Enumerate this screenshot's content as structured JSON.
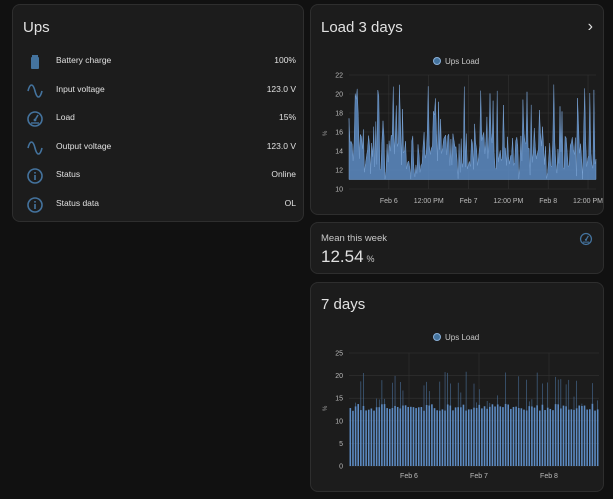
{
  "ups_card": {
    "title": "Ups",
    "entities": [
      {
        "name": "Battery charge",
        "value": "100%",
        "icon": "battery-icon"
      },
      {
        "name": "Input voltage",
        "value": "123.0 V",
        "icon": "sine-wave-icon"
      },
      {
        "name": "Load",
        "value": "15%",
        "icon": "gauge-icon"
      },
      {
        "name": "Output voltage",
        "value": "123.0 V",
        "icon": "sine-wave-icon"
      },
      {
        "name": "Status",
        "value": "Online",
        "icon": "info-icon"
      },
      {
        "name": "Status data",
        "value": "OL",
        "icon": "info-icon"
      }
    ]
  },
  "load_card": {
    "title": "Load 3 days",
    "chevron": "›"
  },
  "mean_card": {
    "label": "Mean this week",
    "value": "12.54",
    "unit": "%",
    "icon": "gauge-icon"
  },
  "week_card": {
    "title": "7 days"
  },
  "colors": {
    "accent": "#44739e",
    "icon": "#44739e",
    "card": "#1c1c1c",
    "background": "#111111"
  },
  "chart_data": [
    {
      "type": "area",
      "title": "Load 3 days",
      "legend": [
        "Ups Load"
      ],
      "ylabel": "%",
      "ylim": [
        10,
        22
      ],
      "yticks": [
        "10",
        "12",
        "14",
        "16",
        "18",
        "20",
        "22"
      ],
      "xticks": [
        {
          "label": "Feb 6",
          "t": 0.5
        },
        {
          "label": "12:00 PM",
          "t": 1.0
        },
        {
          "label": "Feb 7",
          "t": 1.5
        },
        {
          "label": "12:00 PM",
          "t": 2.0
        },
        {
          "label": "Feb 8",
          "t": 2.5
        },
        {
          "label": "12:00 PM",
          "t": 3.0
        }
      ],
      "xrange": [
        0.0,
        3.1
      ],
      "series": [
        {
          "name": "Ups Load",
          "baseline": 11,
          "low": 11,
          "base_mid": 14,
          "high": 21
        }
      ]
    },
    {
      "type": "bar",
      "title": "7 days",
      "legend": [
        "Ups Load"
      ],
      "ylabel": "%",
      "ylim": [
        0,
        25
      ],
      "yticks": [
        "0",
        "5",
        "10",
        "15",
        "20",
        "25"
      ],
      "xticks": [
        {
          "label": "Feb 6",
          "t": 0.24
        },
        {
          "label": "Feb 7",
          "t": 0.52
        },
        {
          "label": "Feb 8",
          "t": 0.8
        }
      ],
      "series": [
        {
          "name": "Ups Load",
          "bar_count": 95,
          "value_min": 12.2,
          "value_max": 13.8,
          "spike_max": 21
        }
      ]
    }
  ]
}
